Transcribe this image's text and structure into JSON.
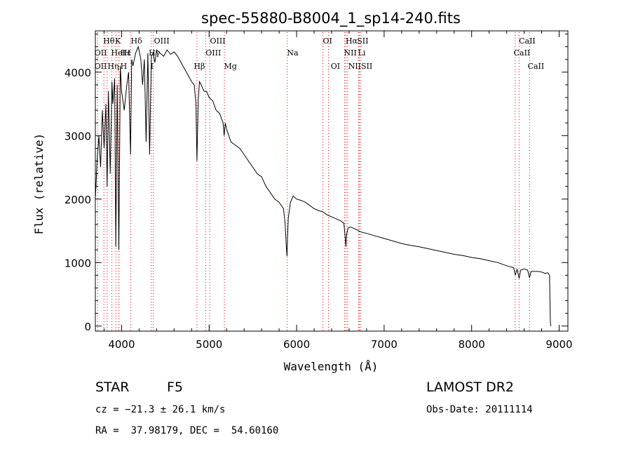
{
  "chart_data": {
    "type": "line",
    "title": "spec-55880-B8004_1_sp14-240.fits",
    "xlabel": "Wavelength (Å)",
    "ylabel": "Flux (relative)",
    "xlim": [
      3700,
      9100
    ],
    "ylim": [
      -80,
      4650
    ],
    "xticks": [
      4000,
      5000,
      6000,
      7000,
      8000,
      9000
    ],
    "yticks": [
      0,
      1000,
      2000,
      3000,
      4000
    ],
    "series": [
      {
        "name": "flux",
        "x": [
          3700,
          3720,
          3740,
          3760,
          3780,
          3800,
          3820,
          3835,
          3850,
          3870,
          3890,
          3900,
          3920,
          3934,
          3950,
          3968,
          3985,
          4000,
          4030,
          4060,
          4080,
          4102,
          4115,
          4130,
          4160,
          4190,
          4220,
          4240,
          4260,
          4280,
          4300,
          4320,
          4340,
          4360,
          4380,
          4400,
          4440,
          4480,
          4520,
          4560,
          4600,
          4640,
          4680,
          4720,
          4760,
          4800,
          4830,
          4850,
          4861,
          4875,
          4890,
          4910,
          4940,
          4970,
          5000,
          5040,
          5080,
          5120,
          5160,
          5172,
          5185,
          5200,
          5250,
          5300,
          5350,
          5400,
          5450,
          5500,
          5550,
          5600,
          5650,
          5700,
          5750,
          5800,
          5850,
          5870,
          5880,
          5890,
          5896,
          5905,
          5930,
          5960,
          6000,
          6050,
          6100,
          6150,
          6200,
          6250,
          6300,
          6350,
          6400,
          6450,
          6500,
          6540,
          6555,
          6563,
          6572,
          6590,
          6620,
          6680,
          6740,
          6800,
          6900,
          7000,
          7100,
          7200,
          7300,
          7400,
          7500,
          7600,
          7700,
          7800,
          7900,
          8000,
          8100,
          8200,
          8300,
          8400,
          8480,
          8500,
          8520,
          8542,
          8560,
          8600,
          8640,
          8662,
          8680,
          8720,
          8760,
          8800,
          8840,
          8870,
          8890,
          8900,
          8905
        ],
        "y": [
          2000,
          2600,
          3000,
          2500,
          3400,
          2800,
          3500,
          2200,
          3700,
          2400,
          3850,
          3500,
          3900,
          1250,
          3800,
          1200,
          4100,
          3700,
          3400,
          3800,
          4000,
          2700,
          4200,
          4100,
          4300,
          4400,
          4200,
          3800,
          4200,
          2900,
          4300,
          2700,
          4250,
          4300,
          4150,
          4350,
          4300,
          4250,
          4350,
          4280,
          4320,
          4250,
          4150,
          4050,
          3950,
          3850,
          3800,
          3500,
          2600,
          3550,
          3850,
          3800,
          3700,
          3700,
          3600,
          3550,
          3400,
          3350,
          3200,
          3000,
          3200,
          3100,
          2900,
          2850,
          2800,
          2700,
          2600,
          2500,
          2400,
          2350,
          2200,
          2100,
          2000,
          1950,
          1850,
          1600,
          1300,
          1100,
          1400,
          1700,
          1950,
          2050,
          2000,
          1980,
          1950,
          1900,
          1850,
          1820,
          1800,
          1750,
          1720,
          1690,
          1660,
          1620,
          1400,
          1250,
          1450,
          1550,
          1560,
          1520,
          1480,
          1460,
          1420,
          1380,
          1340,
          1300,
          1270,
          1250,
          1220,
          1190,
          1160,
          1130,
          1110,
          1080,
          1060,
          1030,
          1000,
          950,
          920,
          800,
          900,
          750,
          880,
          900,
          880,
          760,
          860,
          860,
          860,
          850,
          830,
          840,
          800,
          60,
          0
        ]
      }
    ],
    "lines": [
      {
        "name": "Hθ",
        "wl": 3798
      },
      {
        "name": "Hη",
        "wl": 3835
      },
      {
        "name": "OII",
        "wl": 3727
      },
      {
        "name": "HeI",
        "wl": 3889
      },
      {
        "name": "Hε",
        "wl": 3970
      },
      {
        "name": "K",
        "wl": 3934
      },
      {
        "name": "H",
        "wl": 3968
      },
      {
        "name": "Hδ",
        "wl": 4102
      },
      {
        "name": "OIII",
        "wl": 4363
      },
      {
        "name": "Hγ",
        "wl": 4340
      },
      {
        "name": "Hβ",
        "wl": 4861
      },
      {
        "name": "OIII",
        "wl": 4959
      },
      {
        "name": "OIII",
        "wl": 5007
      },
      {
        "name": "Mg",
        "wl": 5175
      },
      {
        "name": "Na",
        "wl": 5893
      },
      {
        "name": "OI",
        "wl": 6300
      },
      {
        "name": "OI",
        "wl": 6364
      },
      {
        "name": "Hα",
        "wl": 6563
      },
      {
        "name": "NII",
        "wl": 6548
      },
      {
        "name": "NII",
        "wl": 6583
      },
      {
        "name": "SII",
        "wl": 6716
      },
      {
        "name": "SII",
        "wl": 6731
      },
      {
        "name": "Li",
        "wl": 6708
      },
      {
        "name": "CaII",
        "wl": 8498
      },
      {
        "name": "CaII",
        "wl": 8542
      },
      {
        "name": "CaII",
        "wl": 8662
      }
    ],
    "line_labels": [
      {
        "text": "Hθ",
        "row": 0,
        "x": 3790
      },
      {
        "text": "K",
        "row": 0,
        "x": 3925
      },
      {
        "text": "Hδ",
        "row": 0,
        "x": 4105
      },
      {
        "text": "OIII",
        "row": 0,
        "x": 4370
      },
      {
        "text": "OIII",
        "row": 0,
        "x": 5010
      },
      {
        "text": "OI",
        "row": 0,
        "x": 6300
      },
      {
        "text": "Hα",
        "row": 0,
        "x": 6560
      },
      {
        "text": "SII",
        "row": 0,
        "x": 6690
      },
      {
        "text": "CaII",
        "row": 0,
        "x": 8540
      },
      {
        "text": "OII",
        "row": 1,
        "x": 3690
      },
      {
        "text": "HeI",
        "row": 1,
        "x": 3880
      },
      {
        "text": "Hε",
        "row": 1,
        "x": 3985
      },
      {
        "text": "H",
        "row": 1,
        "x": 4025
      },
      {
        "text": "Hγ",
        "row": 1,
        "x": 4310
      },
      {
        "text": "OIII",
        "row": 1,
        "x": 4960
      },
      {
        "text": "Na",
        "row": 1,
        "x": 5890
      },
      {
        "text": "NII",
        "row": 1,
        "x": 6540
      },
      {
        "text": "Li",
        "row": 1,
        "x": 6700
      },
      {
        "text": "CaII",
        "row": 1,
        "x": 8480
      },
      {
        "text": "OII",
        "row": 2,
        "x": 3690
      },
      {
        "text": "Hη",
        "row": 2,
        "x": 3840
      },
      {
        "text": "H",
        "row": 2,
        "x": 3985
      },
      {
        "text": "I",
        "row": 2,
        "x": 4330
      },
      {
        "text": "Hβ",
        "row": 2,
        "x": 4825
      },
      {
        "text": "Mg",
        "row": 2,
        "x": 5170
      },
      {
        "text": "OI",
        "row": 2,
        "x": 6390
      },
      {
        "text": "NIISII",
        "row": 2,
        "x": 6590
      },
      {
        "text": "CaII",
        "row": 2,
        "x": 8640
      }
    ]
  },
  "info": {
    "type_label": "STAR",
    "subclass": "F5",
    "survey": "LAMOST DR2",
    "cz": "cz = −21.3 ± 26.1 km/s",
    "obs_date": "Obs-Date: 20111114",
    "radec": "RA =  37.98179, DEC =  54.60160"
  },
  "colors": {
    "line_marker": "#e00000",
    "spectrum": "#000000"
  }
}
